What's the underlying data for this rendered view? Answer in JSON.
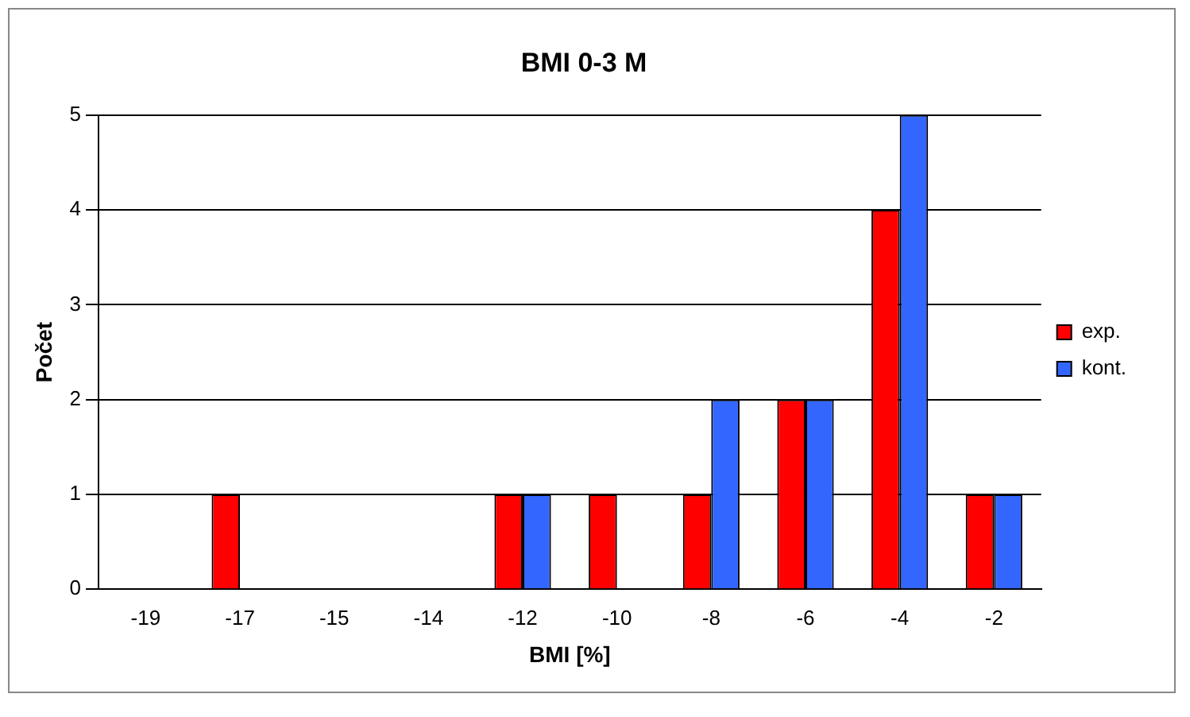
{
  "chart_data": {
    "type": "bar",
    "title": "BMI 0-3 M",
    "xlabel": "BMI [%]",
    "ylabel": "Počet",
    "categories": [
      "-19",
      "-17",
      "-15",
      "-14",
      "-12",
      "-10",
      "-8",
      "-6",
      "-4",
      "-2"
    ],
    "series": [
      {
        "name": "exp.",
        "color": "#ff0000",
        "values": [
          0,
          1,
          0,
          0,
          1,
          1,
          1,
          2,
          4,
          1
        ]
      },
      {
        "name": "kont.",
        "color": "#3366ff",
        "values": [
          0,
          0,
          0,
          0,
          1,
          0,
          2,
          2,
          5,
          1
        ]
      }
    ],
    "ylim": [
      0,
      5
    ],
    "yticks": [
      0,
      1,
      2,
      3,
      4,
      5
    ],
    "grid": "y",
    "legend": "right"
  }
}
